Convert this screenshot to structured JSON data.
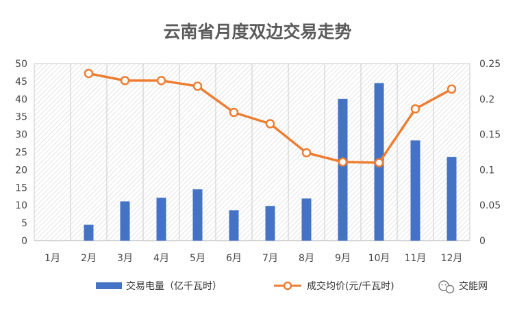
{
  "chart_data": {
    "type": "bar",
    "title": "云南省月度双边交易走势",
    "categories": [
      "1月",
      "2月",
      "3月",
      "4月",
      "5月",
      "6月",
      "7月",
      "8月",
      "9月",
      "10月",
      "11月",
      "12月"
    ],
    "series": [
      {
        "name": "交易电量（亿千瓦时）",
        "type": "bar",
        "axis": "left",
        "color": "#4472c4",
        "values": [
          null,
          4.5,
          11.1,
          12.1,
          14.5,
          8.6,
          9.8,
          11.9,
          40.0,
          44.5,
          28.3,
          23.6
        ]
      },
      {
        "name": "成交均价(元/千瓦时)",
        "type": "line",
        "axis": "right",
        "color": "#ed7d31",
        "values": [
          null,
          0.236,
          0.226,
          0.226,
          0.218,
          0.181,
          0.165,
          0.124,
          0.111,
          0.11,
          0.186,
          0.214
        ]
      }
    ],
    "y_left": {
      "min": 0,
      "max": 50,
      "ticks": [
        "0",
        "5",
        "10",
        "15",
        "20",
        "25",
        "30",
        "35",
        "40",
        "45",
        "50"
      ]
    },
    "y_right": {
      "min": 0,
      "max": 0.25,
      "ticks": [
        "0",
        "0.05",
        "0.1",
        "0.15",
        "0.2",
        "0.25"
      ]
    },
    "xlabel": "",
    "ylabel": "",
    "grid": true,
    "legend": "bottom"
  },
  "watermark": {
    "icon": "wechat-icon",
    "text": "交能网"
  }
}
